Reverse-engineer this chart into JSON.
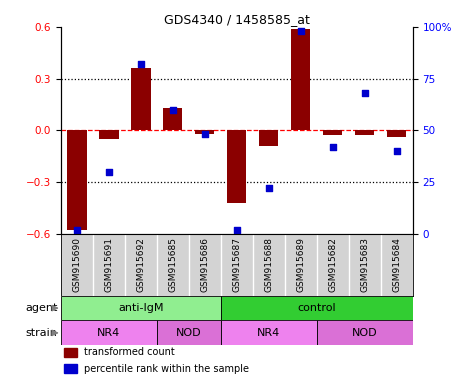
{
  "title": "GDS4340 / 1458585_at",
  "samples": [
    "GSM915690",
    "GSM915691",
    "GSM915692",
    "GSM915685",
    "GSM915686",
    "GSM915687",
    "GSM915688",
    "GSM915689",
    "GSM915682",
    "GSM915683",
    "GSM915684"
  ],
  "red_values": [
    -0.58,
    -0.05,
    0.36,
    0.13,
    -0.02,
    -0.42,
    -0.09,
    0.59,
    -0.03,
    -0.03,
    -0.04
  ],
  "blue_values": [
    2,
    30,
    82,
    60,
    48,
    2,
    22,
    98,
    42,
    68,
    40
  ],
  "ylim_left": [
    -0.6,
    0.6
  ],
  "ylim_right": [
    0,
    100
  ],
  "yticks_left": [
    -0.6,
    -0.3,
    0.0,
    0.3,
    0.6
  ],
  "yticks_right": [
    0,
    25,
    50,
    75,
    100
  ],
  "ytick_labels_right": [
    "0",
    "25",
    "50",
    "75",
    "100%"
  ],
  "hlines": [
    -0.3,
    0.0,
    0.3
  ],
  "hline_colors": [
    "black",
    "red",
    "black"
  ],
  "hline_styles": [
    "dotted",
    "dashed",
    "dotted"
  ],
  "bar_color": "#8B0000",
  "dot_color": "#0000CD",
  "agent_groups": [
    {
      "label": "anti-IgM",
      "start": 0,
      "end": 5,
      "color": "#90EE90"
    },
    {
      "label": "control",
      "start": 5,
      "end": 11,
      "color": "#32CD32"
    }
  ],
  "strain_groups": [
    {
      "label": "NR4",
      "start": 0,
      "end": 3,
      "color": "#EE82EE"
    },
    {
      "label": "NOD",
      "start": 3,
      "end": 5,
      "color": "#DA70D6"
    },
    {
      "label": "NR4",
      "start": 5,
      "end": 8,
      "color": "#EE82EE"
    },
    {
      "label": "NOD",
      "start": 8,
      "end": 11,
      "color": "#DA70D6"
    }
  ],
  "legend_items": [
    {
      "label": "transformed count",
      "color": "#8B0000"
    },
    {
      "label": "percentile rank within the sample",
      "color": "#0000CD"
    }
  ],
  "agent_label": "agent",
  "strain_label": "strain",
  "bar_width": 0.6,
  "sample_bg_color": "#D3D3D3",
  "tick_bg_color": "#E0E0E0"
}
